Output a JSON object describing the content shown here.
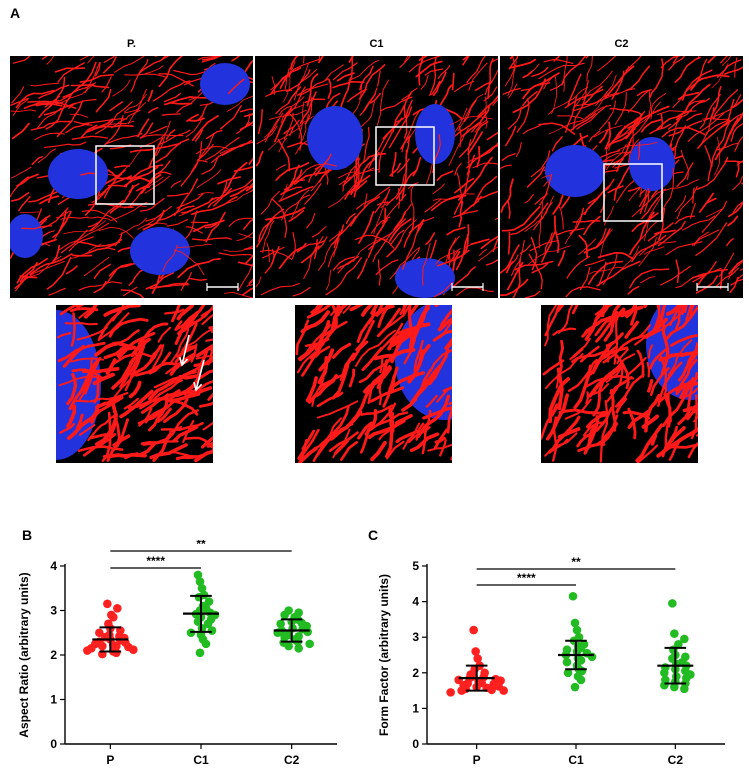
{
  "figure": {
    "panel_a_letter": "A",
    "panel_b_letter": "B",
    "panel_c_letter": "C",
    "image_labels": [
      "P.",
      "C1",
      "C2"
    ]
  },
  "colors": {
    "mitochondria": "#ff1a1a",
    "nucleus": "#2233dd",
    "background": "#000000",
    "p_group": "#ff2020",
    "c_group": "#22bb22"
  },
  "chart_data": [
    {
      "type": "scatter",
      "panel": "B",
      "title": "",
      "xlabel": "",
      "ylabel": "Aspect Ratio (arbitrary units)",
      "categories": [
        "P",
        "C1",
        "C2"
      ],
      "ylim": [
        0,
        4
      ],
      "yticks": [
        0,
        1,
        2,
        3,
        4
      ],
      "groups": [
        {
          "category": "P",
          "color": "#ff2020",
          "mean": 2.35,
          "sd_low": 2.08,
          "sd_high": 2.62,
          "points": [
            3.15,
            3.05,
            2.9,
            2.85,
            2.7,
            2.6,
            2.55,
            2.5,
            2.45,
            2.42,
            2.4,
            2.38,
            2.35,
            2.33,
            2.3,
            2.28,
            2.25,
            2.22,
            2.2,
            2.2,
            2.18,
            2.15,
            2.12,
            2.1,
            2.08,
            2.05,
            2.02
          ]
        },
        {
          "category": "C1",
          "color": "#22bb22",
          "mean": 2.93,
          "sd_low": 2.52,
          "sd_high": 3.33,
          "points": [
            3.8,
            3.65,
            3.5,
            3.35,
            3.3,
            3.2,
            3.1,
            3.05,
            3.0,
            2.95,
            2.92,
            2.9,
            2.85,
            2.8,
            2.75,
            2.7,
            2.6,
            2.55,
            2.5,
            2.45,
            2.35,
            2.25,
            2.05
          ]
        },
        {
          "category": "C2",
          "color": "#22bb22",
          "mean": 2.55,
          "sd_low": 2.3,
          "sd_high": 2.8,
          "points": [
            3.0,
            2.95,
            2.9,
            2.85,
            2.8,
            2.75,
            2.72,
            2.7,
            2.65,
            2.6,
            2.58,
            2.55,
            2.52,
            2.5,
            2.45,
            2.42,
            2.4,
            2.35,
            2.3,
            2.28,
            2.25,
            2.2,
            2.15
          ]
        }
      ],
      "significance": [
        {
          "from": "P",
          "to": "C1",
          "label": "****",
          "level": 1
        },
        {
          "from": "P",
          "to": "C2",
          "label": "**",
          "level": 2
        }
      ],
      "grid": false,
      "legend": "none"
    },
    {
      "type": "scatter",
      "panel": "C",
      "title": "",
      "xlabel": "",
      "ylabel": "Form Factor (arbitrary units)",
      "categories": [
        "P",
        "C1",
        "C2"
      ],
      "ylim": [
        0,
        5
      ],
      "yticks": [
        0,
        1,
        2,
        3,
        4,
        5
      ],
      "groups": [
        {
          "category": "P",
          "color": "#ff2020",
          "mean": 1.85,
          "sd_low": 1.5,
          "sd_high": 2.2,
          "points": [
            3.2,
            2.6,
            2.4,
            2.2,
            2.1,
            2.0,
            1.95,
            1.9,
            1.88,
            1.85,
            1.82,
            1.8,
            1.78,
            1.75,
            1.72,
            1.7,
            1.68,
            1.65,
            1.62,
            1.6,
            1.58,
            1.55,
            1.52,
            1.5,
            1.5,
            1.45
          ]
        },
        {
          "category": "C1",
          "color": "#22bb22",
          "mean": 2.5,
          "sd_low": 2.1,
          "sd_high": 2.9,
          "points": [
            4.15,
            3.4,
            3.2,
            3.0,
            2.9,
            2.8,
            2.75,
            2.7,
            2.65,
            2.6,
            2.55,
            2.5,
            2.45,
            2.4,
            2.35,
            2.3,
            2.2,
            2.1,
            2.05,
            2.0,
            1.9,
            1.8,
            1.6
          ]
        },
        {
          "category": "C2",
          "color": "#22bb22",
          "mean": 2.2,
          "sd_low": 1.7,
          "sd_high": 2.7,
          "points": [
            3.95,
            3.1,
            2.95,
            2.8,
            2.65,
            2.5,
            2.45,
            2.4,
            2.3,
            2.25,
            2.2,
            2.15,
            2.1,
            2.05,
            2.0,
            1.95,
            1.9,
            1.85,
            1.8,
            1.75,
            1.7,
            1.65,
            1.6,
            1.55
          ]
        }
      ],
      "significance": [
        {
          "from": "P",
          "to": "C1",
          "label": "****",
          "level": 1
        },
        {
          "from": "P",
          "to": "C2",
          "label": "**",
          "level": 2
        }
      ],
      "grid": false,
      "legend": "none"
    }
  ]
}
